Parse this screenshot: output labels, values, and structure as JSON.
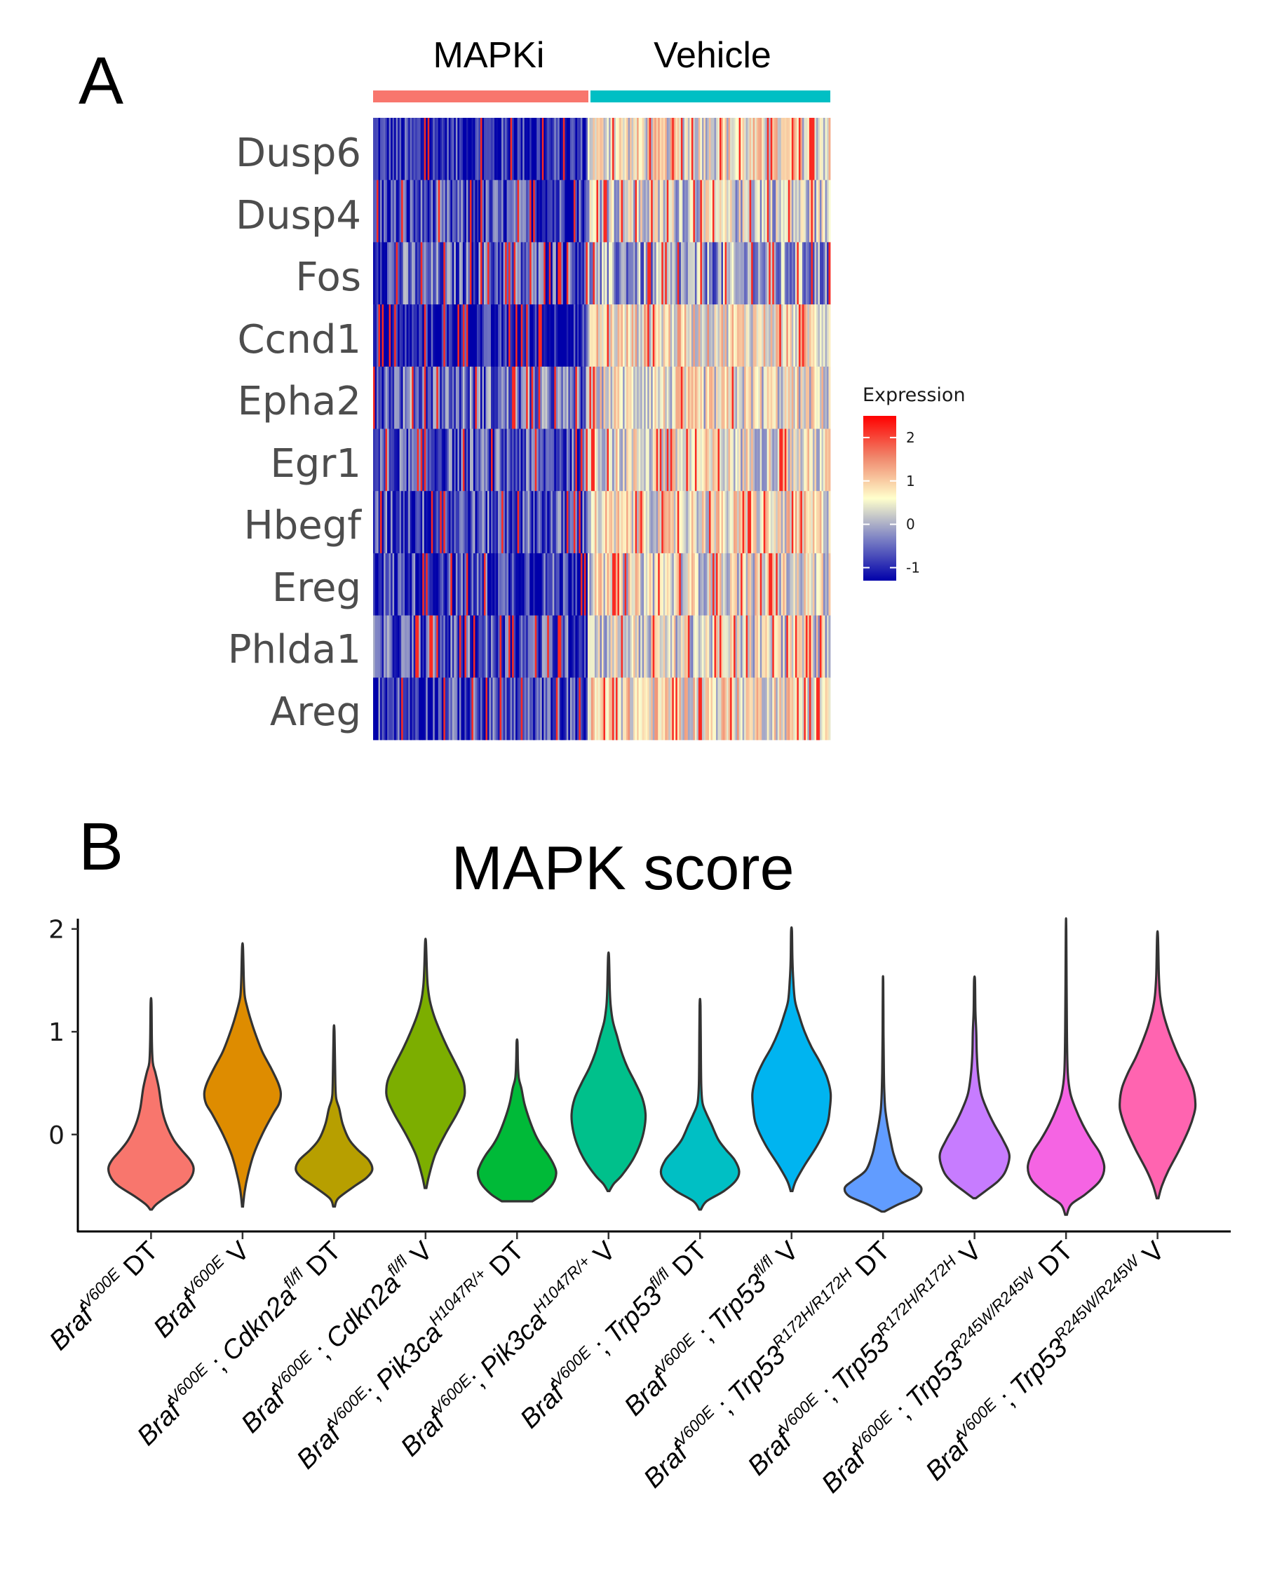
{
  "panel_a": {
    "letter": "A",
    "groups": [
      {
        "name": "MAPKi",
        "color": "#F8766D"
      },
      {
        "name": "Vehicle",
        "color": "#00BFC4"
      }
    ],
    "genes": [
      "Dusp6",
      "Dusp4",
      "Fos",
      "Ccnd1",
      "Epha2",
      "Egr1",
      "Hbegf",
      "Ereg",
      "Phlda1",
      "Areg"
    ],
    "legend": {
      "title": "Expression",
      "ticks": [
        "2",
        "1",
        "0",
        "-1"
      ],
      "tick_values": [
        2,
        1,
        0,
        -1
      ],
      "range": [
        -1.3,
        2.5
      ],
      "colors": [
        "#0000AA",
        "#7A7FC4",
        "#FFFFCC",
        "#F0866B",
        "#FF0000"
      ]
    }
  },
  "panel_b": {
    "letter": "B",
    "title": "MAPK score"
  },
  "chart_data": [
    {
      "type": "heatmap",
      "title": "",
      "rows": [
        "Dusp6",
        "Dusp4",
        "Fos",
        "Ccnd1",
        "Epha2",
        "Egr1",
        "Hbegf",
        "Ereg",
        "Phlda1",
        "Areg"
      ],
      "column_groups": [
        "MAPKi",
        "Vehicle"
      ],
      "column_group_fraction": [
        0.47,
        0.53
      ],
      "value_label": "Expression",
      "color_range": [
        -1.3,
        2.5
      ],
      "mean_expression": {
        "MAPKi": [
          -1.0,
          -0.8,
          -0.6,
          -1.2,
          -0.5,
          -0.7,
          -0.7,
          -0.8,
          -0.7,
          -0.8
        ],
        "Vehicle": [
          0.6,
          0.3,
          -0.2,
          0.7,
          0.5,
          0.5,
          0.6,
          0.5,
          0.4,
          0.7
        ]
      }
    },
    {
      "type": "violin",
      "title": "MAPK score",
      "xlabel": "",
      "ylabel": "",
      "ylim": [
        -0.95,
        2.1
      ],
      "yticks": [
        0,
        1,
        2
      ],
      "categories": [
        {
          "gene": "Braf",
          "sup": "V600E",
          "rest": " DT"
        },
        {
          "gene": "Braf",
          "sup": "V600E",
          "rest": " V"
        },
        {
          "gene": "Braf",
          "sup": "V600E",
          "mid": " ; Cdkn2a",
          "sup2": "fl/fl",
          "rest": " DT"
        },
        {
          "gene": "Braf",
          "sup": "V600E",
          "mid": " ; Cdkn2a",
          "sup2": "fl/fl",
          "rest": " V"
        },
        {
          "gene": "Braf",
          "sup": "V600E",
          "mid": "; Pik3ca",
          "sup2": "H1047R/+",
          "rest": " DT"
        },
        {
          "gene": "Braf",
          "sup": "V600E",
          "mid": "; Pik3ca",
          "sup2": "H1047R/+",
          "rest": " V"
        },
        {
          "gene": "Braf",
          "sup": "V600E",
          "mid": " ; Trp53",
          "sup2": "fl/fl",
          "rest": " DT"
        },
        {
          "gene": "Braf",
          "sup": "V600E",
          "mid": " ; Trp53",
          "sup2": "fl/fl",
          "rest": " V"
        },
        {
          "gene": "Braf",
          "sup": "V600E",
          "mid": " ; Trp53",
          "sup2": "R172H/R172H",
          "rest": " DT"
        },
        {
          "gene": "Braf",
          "sup": "V600E",
          "mid": " ; Trp53",
          "sup2": "R172H/R172H",
          "rest": " V"
        },
        {
          "gene": "Braf",
          "sup": "V600E",
          "mid": " ; Trp53",
          "sup2": "R245W/R245W",
          "rest": " DT"
        },
        {
          "gene": "Braf",
          "sup": "V600E",
          "mid": " ; Trp53",
          "sup2": "R245W/R245W",
          "rest": " V"
        }
      ],
      "violins": [
        {
          "color": "#F8766D",
          "min": -0.73,
          "max": 1.28,
          "widths": [
            [
              -0.73,
              0.02
            ],
            [
              -0.68,
              0.12
            ],
            [
              -0.6,
              0.38
            ],
            [
              -0.5,
              0.75
            ],
            [
              -0.42,
              0.92
            ],
            [
              -0.33,
              0.98
            ],
            [
              -0.25,
              0.9
            ],
            [
              -0.15,
              0.7
            ],
            [
              -0.05,
              0.52
            ],
            [
              0.1,
              0.35
            ],
            [
              0.25,
              0.25
            ],
            [
              0.45,
              0.18
            ],
            [
              0.6,
              0.1
            ],
            [
              0.7,
              0.04
            ],
            [
              0.9,
              0.02
            ],
            [
              1.28,
              0.01
            ]
          ]
        },
        {
          "color": "#DE8C00",
          "min": -0.7,
          "max": 1.82,
          "widths": [
            [
              -0.7,
              0.01
            ],
            [
              -0.55,
              0.05
            ],
            [
              -0.4,
              0.12
            ],
            [
              -0.2,
              0.25
            ],
            [
              0.0,
              0.45
            ],
            [
              0.2,
              0.7
            ],
            [
              0.3,
              0.84
            ],
            [
              0.4,
              0.88
            ],
            [
              0.5,
              0.82
            ],
            [
              0.65,
              0.65
            ],
            [
              0.8,
              0.46
            ],
            [
              0.95,
              0.32
            ],
            [
              1.1,
              0.2
            ],
            [
              1.25,
              0.1
            ],
            [
              1.35,
              0.05
            ],
            [
              1.5,
              0.03
            ],
            [
              1.82,
              0.01
            ]
          ]
        },
        {
          "color": "#B79F00",
          "min": -0.7,
          "max": 1.0,
          "widths": [
            [
              -0.7,
              0.02
            ],
            [
              -0.62,
              0.1
            ],
            [
              -0.5,
              0.48
            ],
            [
              -0.42,
              0.75
            ],
            [
              -0.34,
              0.88
            ],
            [
              -0.25,
              0.8
            ],
            [
              -0.15,
              0.55
            ],
            [
              -0.05,
              0.35
            ],
            [
              0.1,
              0.2
            ],
            [
              0.25,
              0.12
            ],
            [
              0.35,
              0.05
            ],
            [
              0.5,
              0.03
            ],
            [
              1.0,
              0.01
            ]
          ]
        },
        {
          "color": "#7CAE00",
          "min": -0.52,
          "max": 1.87,
          "widths": [
            [
              -0.52,
              0.02
            ],
            [
              -0.4,
              0.08
            ],
            [
              -0.2,
              0.22
            ],
            [
              0.0,
              0.45
            ],
            [
              0.2,
              0.72
            ],
            [
              0.35,
              0.88
            ],
            [
              0.45,
              0.9
            ],
            [
              0.55,
              0.85
            ],
            [
              0.7,
              0.68
            ],
            [
              0.85,
              0.5
            ],
            [
              1.0,
              0.34
            ],
            [
              1.15,
              0.2
            ],
            [
              1.3,
              0.1
            ],
            [
              1.45,
              0.05
            ],
            [
              1.6,
              0.03
            ],
            [
              1.87,
              0.01
            ]
          ]
        },
        {
          "color": "#00BA38",
          "min": -0.65,
          "max": 0.9,
          "widths": [
            [
              -0.65,
              0.35
            ],
            [
              -0.58,
              0.6
            ],
            [
              -0.48,
              0.82
            ],
            [
              -0.38,
              0.9
            ],
            [
              -0.3,
              0.85
            ],
            [
              -0.2,
              0.72
            ],
            [
              -0.1,
              0.55
            ],
            [
              0.0,
              0.42
            ],
            [
              0.15,
              0.28
            ],
            [
              0.3,
              0.17
            ],
            [
              0.45,
              0.1
            ],
            [
              0.55,
              0.04
            ],
            [
              0.7,
              0.02
            ],
            [
              0.9,
              0.01
            ]
          ]
        },
        {
          "color": "#00C08B",
          "min": -0.55,
          "max": 1.73,
          "widths": [
            [
              -0.55,
              0.02
            ],
            [
              -0.48,
              0.12
            ],
            [
              -0.4,
              0.3
            ],
            [
              -0.25,
              0.55
            ],
            [
              -0.1,
              0.72
            ],
            [
              0.05,
              0.82
            ],
            [
              0.2,
              0.85
            ],
            [
              0.35,
              0.78
            ],
            [
              0.5,
              0.62
            ],
            [
              0.65,
              0.44
            ],
            [
              0.8,
              0.3
            ],
            [
              0.95,
              0.2
            ],
            [
              1.1,
              0.1
            ],
            [
              1.25,
              0.05
            ],
            [
              1.4,
              0.03
            ],
            [
              1.73,
              0.01
            ]
          ]
        },
        {
          "color": "#00BFC4",
          "min": -0.73,
          "max": 1.25,
          "widths": [
            [
              -0.73,
              0.02
            ],
            [
              -0.65,
              0.15
            ],
            [
              -0.55,
              0.55
            ],
            [
              -0.45,
              0.82
            ],
            [
              -0.36,
              0.9
            ],
            [
              -0.25,
              0.8
            ],
            [
              -0.15,
              0.6
            ],
            [
              -0.05,
              0.42
            ],
            [
              0.1,
              0.26
            ],
            [
              0.2,
              0.15
            ],
            [
              0.3,
              0.06
            ],
            [
              0.45,
              0.03
            ],
            [
              0.7,
              0.02
            ],
            [
              1.25,
              0.01
            ]
          ]
        },
        {
          "color": "#00B4F0",
          "min": -0.55,
          "max": 1.98,
          "widths": [
            [
              -0.55,
              0.02
            ],
            [
              -0.45,
              0.1
            ],
            [
              -0.3,
              0.3
            ],
            [
              -0.1,
              0.6
            ],
            [
              0.1,
              0.82
            ],
            [
              0.25,
              0.88
            ],
            [
              0.4,
              0.9
            ],
            [
              0.55,
              0.82
            ],
            [
              0.7,
              0.66
            ],
            [
              0.85,
              0.46
            ],
            [
              1.0,
              0.3
            ],
            [
              1.15,
              0.18
            ],
            [
              1.3,
              0.08
            ],
            [
              1.5,
              0.04
            ],
            [
              1.7,
              0.02
            ],
            [
              1.98,
              0.01
            ]
          ]
        },
        {
          "color": "#619CFF",
          "min": -0.75,
          "max": 1.48,
          "widths": [
            [
              -0.75,
              0.03
            ],
            [
              -0.68,
              0.35
            ],
            [
              -0.6,
              0.78
            ],
            [
              -0.52,
              0.88
            ],
            [
              -0.45,
              0.7
            ],
            [
              -0.35,
              0.4
            ],
            [
              -0.2,
              0.25
            ],
            [
              -0.05,
              0.17
            ],
            [
              0.1,
              0.1
            ],
            [
              0.25,
              0.05
            ],
            [
              0.4,
              0.03
            ],
            [
              0.6,
              0.02
            ],
            [
              1.0,
              0.01
            ],
            [
              1.48,
              0.005
            ]
          ]
        },
        {
          "color": "#C77CFF",
          "min": -0.62,
          "max": 1.5,
          "widths": [
            [
              -0.62,
              0.03
            ],
            [
              -0.55,
              0.25
            ],
            [
              -0.45,
              0.55
            ],
            [
              -0.35,
              0.72
            ],
            [
              -0.2,
              0.8
            ],
            [
              -0.05,
              0.65
            ],
            [
              0.1,
              0.45
            ],
            [
              0.25,
              0.28
            ],
            [
              0.4,
              0.15
            ],
            [
              0.6,
              0.08
            ],
            [
              0.8,
              0.05
            ],
            [
              1.0,
              0.04
            ],
            [
              1.2,
              0.02
            ],
            [
              1.5,
              0.01
            ]
          ]
        },
        {
          "color": "#F564E3",
          "min": -0.78,
          "max": 1.98,
          "widths": [
            [
              -0.78,
              0.02
            ],
            [
              -0.68,
              0.12
            ],
            [
              -0.58,
              0.45
            ],
            [
              -0.45,
              0.78
            ],
            [
              -0.32,
              0.88
            ],
            [
              -0.18,
              0.78
            ],
            [
              -0.05,
              0.58
            ],
            [
              0.1,
              0.38
            ],
            [
              0.25,
              0.22
            ],
            [
              0.4,
              0.1
            ],
            [
              0.6,
              0.04
            ],
            [
              1.0,
              0.02
            ],
            [
              1.98,
              0.005
            ]
          ]
        },
        {
          "color": "#FF64B0",
          "min": -0.62,
          "max": 1.93,
          "widths": [
            [
              -0.62,
              0.02
            ],
            [
              -0.5,
              0.1
            ],
            [
              -0.35,
              0.25
            ],
            [
              -0.15,
              0.5
            ],
            [
              0.05,
              0.72
            ],
            [
              0.2,
              0.84
            ],
            [
              0.3,
              0.87
            ],
            [
              0.45,
              0.82
            ],
            [
              0.6,
              0.68
            ],
            [
              0.75,
              0.5
            ],
            [
              0.9,
              0.35
            ],
            [
              1.05,
              0.22
            ],
            [
              1.2,
              0.12
            ],
            [
              1.35,
              0.06
            ],
            [
              1.55,
              0.03
            ],
            [
              1.93,
              0.01
            ]
          ]
        }
      ]
    }
  ]
}
